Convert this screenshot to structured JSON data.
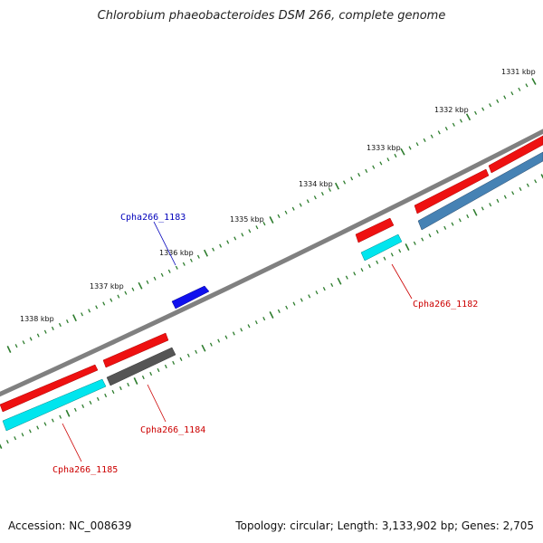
{
  "title": "Chlorobium phaeobacteroides DSM 266, complete genome",
  "footer": {
    "accession_label": "Accession:",
    "accession": "NC_008639",
    "topology_label": "Topology:",
    "topology": "circular",
    "length_label": "Length:",
    "length": "3,133,902 bp",
    "genes_label": "Genes:",
    "genes": "2,705"
  },
  "colors": {
    "backbone": "#808080",
    "tick": "#2e7d2e",
    "forward_cds": "#ee1111",
    "reverse_cds": "#00e5ee",
    "blue_cds": "#1010ee",
    "steel_cds": "#4682b4",
    "gray_cds": "#555555",
    "label_red": "#cc0000",
    "label_blue": "#0000bb"
  },
  "kbp_labels": [
    "1331 kbp",
    "1332 kbp",
    "1333 kbp",
    "1334 kbp",
    "1335 kbp",
    "1336 kbp",
    "1337 kbp",
    "1338 kbp"
  ],
  "gene_labels": [
    {
      "id": "Cpha266_1183",
      "color": "blue"
    },
    {
      "id": "Cpha266_1182",
      "color": "red"
    },
    {
      "id": "Cpha266_1184",
      "color": "red"
    },
    {
      "id": "Cpha266_1185",
      "color": "red"
    }
  ]
}
